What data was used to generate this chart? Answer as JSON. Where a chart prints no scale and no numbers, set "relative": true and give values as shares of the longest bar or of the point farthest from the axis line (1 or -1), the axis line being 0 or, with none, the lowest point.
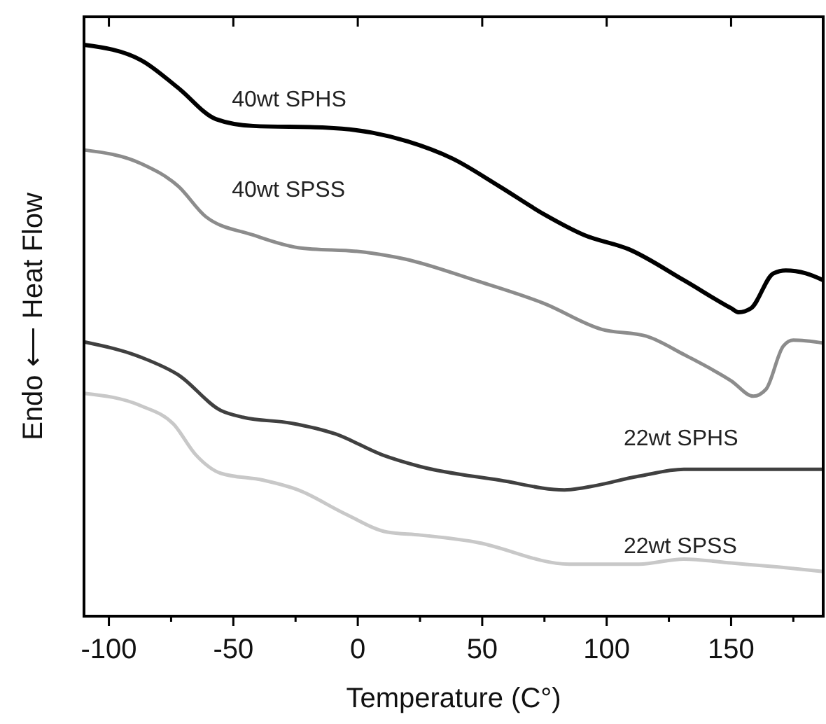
{
  "chart_data": {
    "type": "line",
    "relative": true,
    "xlabel": "Temperature (C°)",
    "ylabel": "Endo ⟵ Heat Flow",
    "xlim": [
      -110,
      187
    ],
    "xticks": [
      -100,
      {
        "value": -75,
        "label": null
      },
      -50,
      {
        "value": -25,
        "label": null
      },
      0,
      {
        "value": 25,
        "label": null
      },
      50,
      {
        "value": 75,
        "label": null
      },
      100,
      {
        "value": 125,
        "label": null
      },
      150,
      {
        "value": 175,
        "label": null
      }
    ],
    "grid": false,
    "marker": "none",
    "line_style": "solid",
    "tick_labels": "x",
    "series": [
      {
        "name": "40wt SPHS",
        "color": "#000000",
        "x": [
          -110,
          -87,
          -72,
          -57,
          -42,
          -13,
          6,
          20,
          38,
          57,
          75,
          91,
          109,
          131,
          150,
          153,
          158,
          167,
          172,
          180,
          187
        ],
        "values": [
          1.0,
          0.973,
          0.924,
          0.87,
          0.858,
          0.855,
          0.846,
          0.831,
          0.801,
          0.752,
          0.703,
          0.667,
          0.642,
          0.588,
          0.539,
          0.532,
          0.539,
          0.6,
          0.605,
          0.6,
          0.588
        ]
      },
      {
        "name": "40wt SPSS",
        "color": "#8c8c8c",
        "x": [
          -110,
          -87,
          -72,
          -61,
          -42,
          -24,
          3,
          19,
          47,
          75,
          98,
          116,
          131,
          150,
          159,
          164,
          171,
          175,
          187
        ],
        "values": [
          0.816,
          0.792,
          0.752,
          0.699,
          0.667,
          0.645,
          0.637,
          0.625,
          0.588,
          0.547,
          0.502,
          0.49,
          0.458,
          0.412,
          0.385,
          0.397,
          0.473,
          0.483,
          0.478
        ]
      },
      {
        "name": "22wt SPHS",
        "color": "#404040",
        "x": [
          -110,
          -87,
          -72,
          -55,
          -46,
          -27,
          -9,
          10,
          25,
          57,
          83,
          91,
          113,
          131,
          187
        ],
        "values": [
          0.48,
          0.453,
          0.422,
          0.36,
          0.348,
          0.338,
          0.319,
          0.282,
          0.262,
          0.238,
          0.221,
          0.225,
          0.245,
          0.257,
          0.257
        ]
      },
      {
        "name": "22wt SPSS",
        "color": "#c8c8c8",
        "x": [
          -110,
          -87,
          -74,
          -65,
          -55,
          -38,
          -24,
          -5,
          12,
          25,
          47,
          85,
          113,
          131,
          150,
          169,
          187
        ],
        "values": [
          0.39,
          0.368,
          0.336,
          0.282,
          0.25,
          0.238,
          0.221,
          0.179,
          0.147,
          0.142,
          0.13,
          0.091,
          0.091,
          0.1,
          0.093,
          0.086,
          0.078
        ]
      }
    ]
  }
}
